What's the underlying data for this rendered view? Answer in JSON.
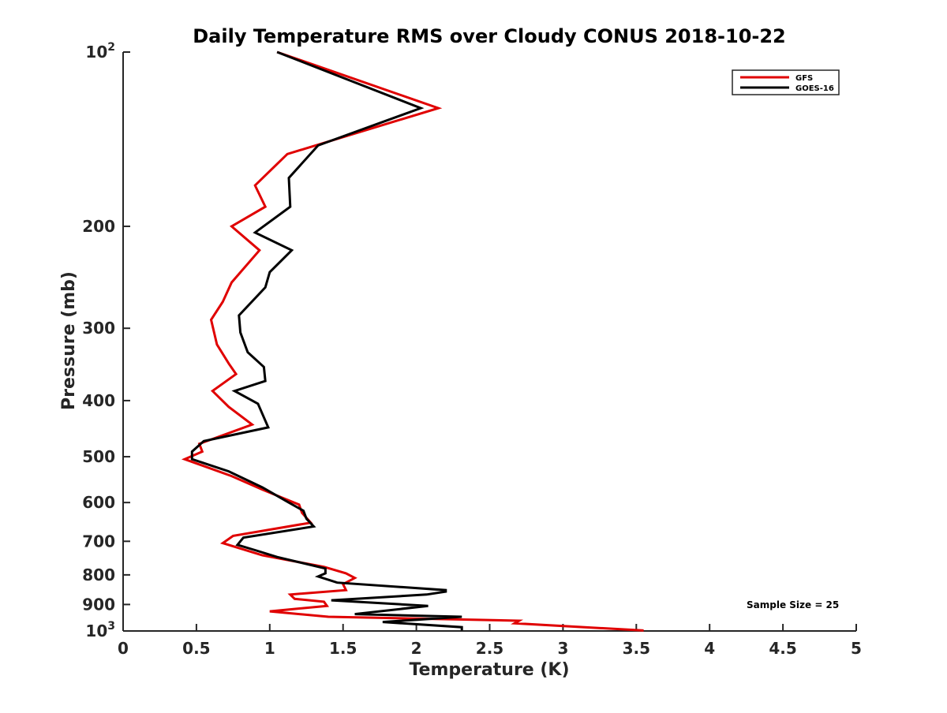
{
  "chart_data": {
    "type": "line",
    "title": "Daily Temperature RMS over Cloudy CONUS 2018-10-22",
    "xlabel": "Temperature (K)",
    "ylabel": "Pressure (mb)",
    "xlim": [
      0,
      5
    ],
    "ylim": [
      100,
      1000
    ],
    "y_scale": "log",
    "y_reversed": true,
    "grid": false,
    "legend_position": "top-right",
    "x_ticks": [
      {
        "value": 0,
        "label": "0"
      },
      {
        "value": 0.5,
        "label": "0.5"
      },
      {
        "value": 1,
        "label": "1"
      },
      {
        "value": 1.5,
        "label": "1.5"
      },
      {
        "value": 2,
        "label": "2"
      },
      {
        "value": 2.5,
        "label": "2.5"
      },
      {
        "value": 3,
        "label": "3"
      },
      {
        "value": 3.5,
        "label": "3.5"
      },
      {
        "value": 4,
        "label": "4"
      },
      {
        "value": 4.5,
        "label": "4.5"
      },
      {
        "value": 5,
        "label": "5"
      }
    ],
    "y_ticks": [
      {
        "value": 100,
        "label": "10",
        "sup": "2"
      },
      {
        "value": 200,
        "label": "200"
      },
      {
        "value": 300,
        "label": "300"
      },
      {
        "value": 400,
        "label": "400"
      },
      {
        "value": 500,
        "label": "500"
      },
      {
        "value": 600,
        "label": "600"
      },
      {
        "value": 700,
        "label": "700"
      },
      {
        "value": 800,
        "label": "800"
      },
      {
        "value": 900,
        "label": "900"
      },
      {
        "value": 1000,
        "label": "10",
        "sup": "3"
      }
    ],
    "series": [
      {
        "name": "GFS",
        "color": "#e00000",
        "points": [
          [
            1.05,
            100
          ],
          [
            2.15,
            125
          ],
          [
            1.12,
            150
          ],
          [
            0.9,
            170
          ],
          [
            0.97,
            185
          ],
          [
            0.74,
            200
          ],
          [
            0.93,
            220
          ],
          [
            0.74,
            250
          ],
          [
            0.68,
            270
          ],
          [
            0.6,
            290
          ],
          [
            0.64,
            320
          ],
          [
            0.72,
            345
          ],
          [
            0.77,
            360
          ],
          [
            0.61,
            385
          ],
          [
            0.72,
            410
          ],
          [
            0.88,
            440
          ],
          [
            0.52,
            475
          ],
          [
            0.54,
            490
          ],
          [
            0.42,
            505
          ],
          [
            0.74,
            540
          ],
          [
            0.95,
            570
          ],
          [
            1.2,
            605
          ],
          [
            1.22,
            625
          ],
          [
            1.28,
            650
          ],
          [
            0.75,
            685
          ],
          [
            0.68,
            705
          ],
          [
            0.95,
            740
          ],
          [
            1.37,
            775
          ],
          [
            1.52,
            795
          ],
          [
            1.58,
            810
          ],
          [
            1.5,
            830
          ],
          [
            1.52,
            850
          ],
          [
            1.14,
            865
          ],
          [
            1.17,
            880
          ],
          [
            1.37,
            890
          ],
          [
            1.39,
            905
          ],
          [
            1.0,
            925
          ],
          [
            1.4,
            945
          ],
          [
            2.7,
            960
          ],
          [
            2.67,
            970
          ],
          [
            3.55,
            998
          ]
        ]
      },
      {
        "name": "GOES-16",
        "color": "#000000",
        "points": [
          [
            1.05,
            100
          ],
          [
            2.03,
            125
          ],
          [
            1.33,
            145
          ],
          [
            1.13,
            165
          ],
          [
            1.14,
            185
          ],
          [
            0.9,
            205
          ],
          [
            1.15,
            220
          ],
          [
            1.0,
            240
          ],
          [
            0.97,
            255
          ],
          [
            0.79,
            285
          ],
          [
            0.8,
            305
          ],
          [
            0.85,
            330
          ],
          [
            0.96,
            350
          ],
          [
            0.97,
            370
          ],
          [
            0.76,
            385
          ],
          [
            0.92,
            405
          ],
          [
            0.99,
            445
          ],
          [
            0.55,
            470
          ],
          [
            0.47,
            490
          ],
          [
            0.47,
            505
          ],
          [
            0.72,
            530
          ],
          [
            0.95,
            565
          ],
          [
            1.13,
            600
          ],
          [
            1.23,
            620
          ],
          [
            1.25,
            640
          ],
          [
            1.3,
            660
          ],
          [
            0.82,
            690
          ],
          [
            0.78,
            710
          ],
          [
            0.9,
            725
          ],
          [
            1.05,
            745
          ],
          [
            1.38,
            780
          ],
          [
            1.38,
            795
          ],
          [
            1.33,
            805
          ],
          [
            1.46,
            825
          ],
          [
            2.2,
            850
          ],
          [
            2.2,
            855
          ],
          [
            2.07,
            865
          ],
          [
            1.42,
            885
          ],
          [
            2.08,
            905
          ],
          [
            1.58,
            935
          ],
          [
            2.31,
            945
          ],
          [
            1.77,
            965
          ],
          [
            2.31,
            985
          ],
          [
            2.31,
            998
          ]
        ]
      }
    ],
    "legend": [
      {
        "label": "GFS",
        "color": "#e00000"
      },
      {
        "label": "GOES-16",
        "color": "#000000"
      }
    ],
    "annotations": [
      {
        "text": "Sample Size = 25"
      }
    ]
  }
}
